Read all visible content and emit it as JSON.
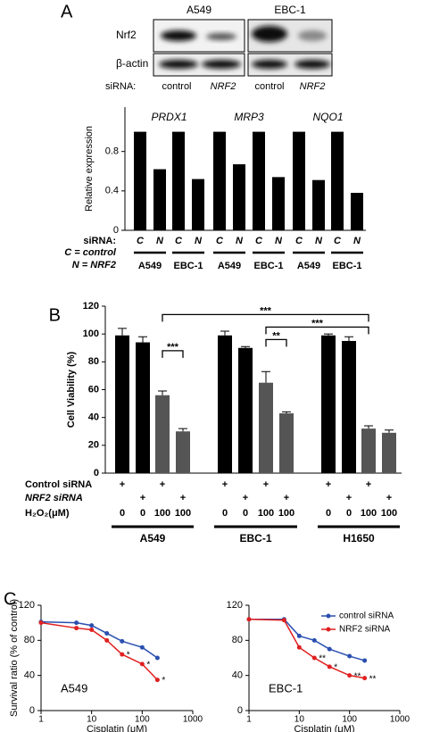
{
  "panels": [
    "A",
    "B",
    "C"
  ],
  "blot": {
    "cell_lines": [
      "A549",
      "EBC-1"
    ],
    "rows": [
      "Nrf2",
      "β-actin"
    ],
    "sirna_label": "siRNA:",
    "lanes": [
      "control",
      "NRF2",
      "control",
      "NRF2"
    ]
  },
  "chart_data": [
    {
      "type": "bar",
      "ylabel": "Relative expression",
      "groups": [
        "PRDX1",
        "MRP3",
        "NQO1"
      ],
      "categories": [
        "C",
        "N",
        "C",
        "N",
        "C",
        "N",
        "C",
        "N",
        "C",
        "N",
        "C",
        "N"
      ],
      "values": [
        1,
        0.62,
        1,
        0.52,
        1,
        0.67,
        1,
        0.54,
        1,
        0.51,
        1,
        0.38
      ],
      "color": "#000000",
      "pair_labels": [
        "A549",
        "EBC-1",
        "A549",
        "EBC-1",
        "A549",
        "EBC-1"
      ],
      "row_label": "siRNA:",
      "key": [
        "C = control",
        "N = NRF2"
      ],
      "ylim": [
        0,
        1.25
      ],
      "yticks": [
        0,
        0.4,
        0.8
      ]
    },
    {
      "type": "bar",
      "ylabel": "Cell Viability (%)",
      "groups": [
        "A549",
        "EBC-1",
        "H1650"
      ],
      "values": [
        99,
        94,
        56,
        30,
        99,
        90,
        65,
        43,
        99,
        95,
        32,
        29
      ],
      "errors": [
        5,
        4,
        3,
        2,
        3,
        1,
        8,
        1,
        1,
        3,
        2,
        2
      ],
      "colors": [
        "#000000",
        "#000000",
        "#555555",
        "#555555",
        "#000000",
        "#000000",
        "#555555",
        "#555555",
        "#000000",
        "#000000",
        "#555555",
        "#555555"
      ],
      "treatments": [
        {
          "label": "Control siRNA",
          "values": [
            "+",
            null,
            "+",
            null,
            "+",
            null,
            "+",
            null,
            "+",
            null,
            "+",
            null
          ]
        },
        {
          "label": "NRF2 siRNA",
          "values": [
            null,
            "+",
            null,
            "+",
            null,
            "+",
            null,
            "+",
            null,
            "+",
            null,
            "+"
          ]
        },
        {
          "label": "H₂O₂(μM)",
          "values": [
            0,
            0,
            100,
            100,
            0,
            0,
            100,
            100,
            0,
            0,
            100,
            100
          ]
        }
      ],
      "significance": [
        "***",
        "**",
        "***",
        "***"
      ],
      "ylim": [
        0,
        120
      ],
      "yticks": [
        0,
        20,
        40,
        60,
        80,
        100,
        120
      ]
    },
    {
      "type": "line",
      "label": "A549",
      "ylabel": "Survival ratio (% of control)",
      "xlabel": "Cisplatin (μM)",
      "x": [
        1,
        5,
        10,
        20,
        40,
        100,
        200
      ],
      "log_x": true,
      "series": [
        {
          "color": "#2a4fb0",
          "values": [
            101,
            100,
            97,
            88,
            79,
            72,
            60
          ]
        },
        {
          "color": "#e02020",
          "values": [
            100,
            94,
            92,
            80,
            64,
            53,
            35
          ]
        }
      ],
      "annotations": [
        null,
        null,
        null,
        null,
        "*",
        "*",
        "*"
      ],
      "xlim": [
        1,
        1000
      ],
      "xticks": [
        1,
        10,
        100,
        1000
      ],
      "ylim": [
        0,
        120
      ],
      "yticks": [
        0,
        40,
        80,
        120
      ]
    },
    {
      "type": "line",
      "label": "EBC-1",
      "xlabel": "Cisplatin (μM)",
      "x": [
        1,
        5,
        10,
        20,
        40,
        100,
        200
      ],
      "log_x": true,
      "series": [
        {
          "name": "control siRNA",
          "color": "#2a4fb0",
          "values": [
            104,
            104,
            85,
            80,
            70,
            62,
            57
          ]
        },
        {
          "name": "NRF2 siRNA",
          "color": "#e02020",
          "values": [
            104,
            103,
            72,
            60,
            50,
            40,
            37
          ]
        }
      ],
      "annotations": [
        null,
        null,
        null,
        "**",
        "*",
        "**",
        "**"
      ],
      "xlim": [
        1,
        1000
      ],
      "xticks": [
        1,
        10,
        100,
        1000
      ],
      "ylim": [
        0,
        120
      ],
      "yticks": [
        0,
        40,
        80,
        120
      ]
    }
  ]
}
